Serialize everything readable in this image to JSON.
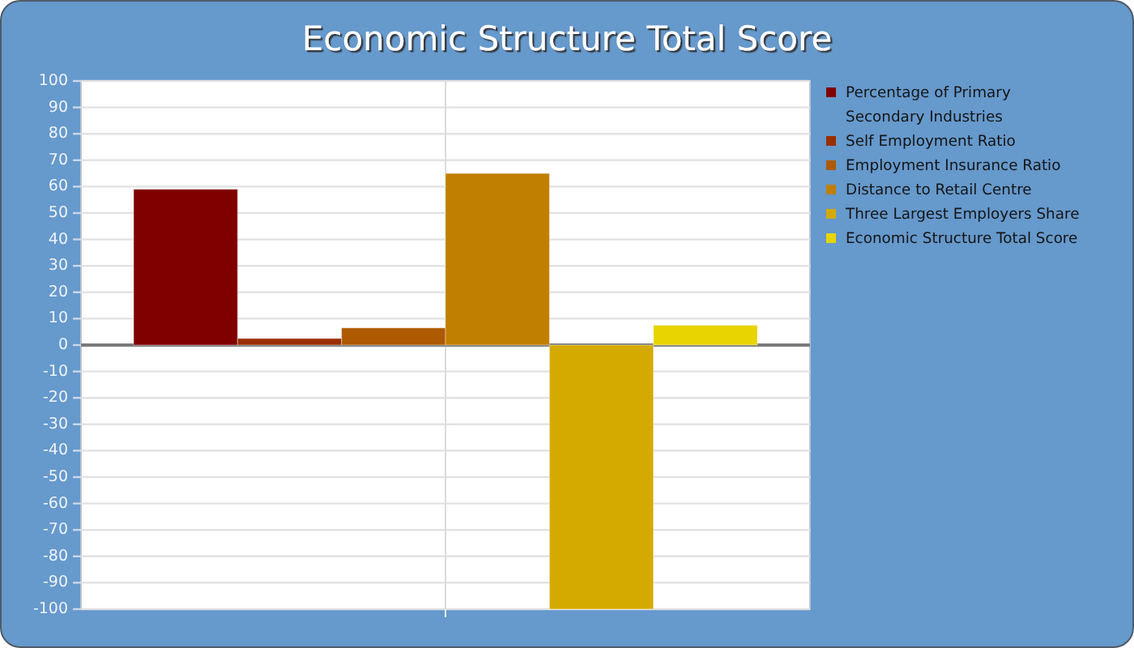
{
  "chart_data": {
    "type": "bar",
    "title": "Economic Structure Total Score",
    "categories": [
      null
    ],
    "series": [
      {
        "name": "Percentage of Primary Secondary Industries",
        "color": "#800000",
        "values": [
          59
        ]
      },
      {
        "name": "Self Employment Ratio",
        "color": "#992e00",
        "values": [
          2.5
        ]
      },
      {
        "name": "Employment Insurance Ratio",
        "color": "#ad5a00",
        "values": [
          6.5
        ]
      },
      {
        "name": "Distance to Retail Centre",
        "color": "#c17f00",
        "values": [
          65
        ]
      },
      {
        "name": "Three Largest Employers Share",
        "color": "#d4aa00",
        "values": [
          -100
        ]
      },
      {
        "name": "Economic Structure Total Score",
        "color": "#e8d400",
        "values": [
          7.5
        ]
      }
    ],
    "ylim": [
      -100,
      100
    ],
    "yticks": [
      -100,
      -90,
      -80,
      -70,
      -60,
      -50,
      -40,
      -30,
      -20,
      -10,
      0,
      10,
      20,
      30,
      40,
      50,
      60,
      70,
      80,
      90,
      100
    ],
    "grid": true,
    "legend": "top right"
  }
}
